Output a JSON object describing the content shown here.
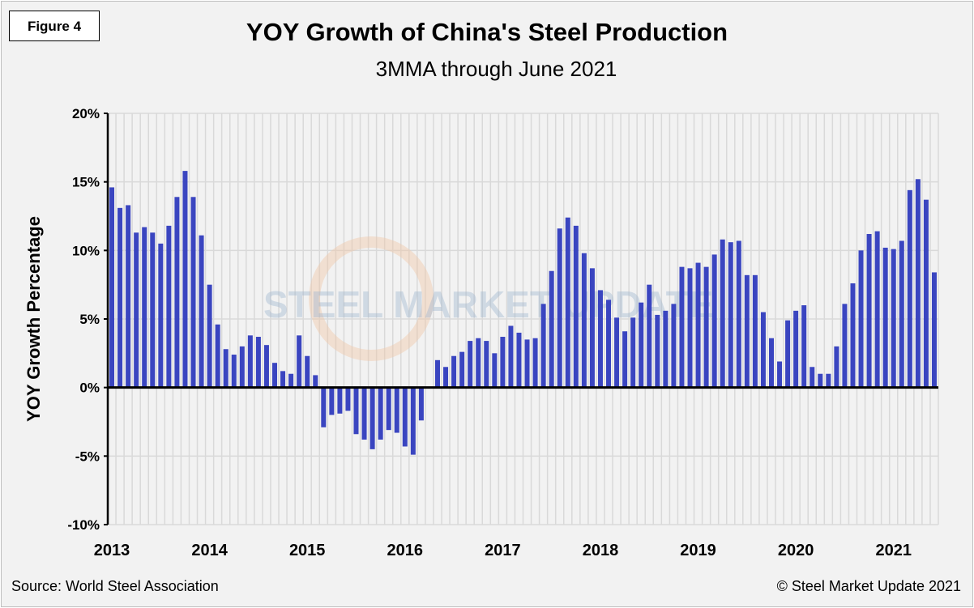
{
  "figure_label": "Figure 4",
  "source": "Source: World Steel Association",
  "copyright": "© Steel Market Update 2021",
  "watermark": "STEEL MARKET UPDATE part of the CRU Group",
  "chart_data": {
    "type": "bar",
    "title": "YOY Growth of China's Steel Production",
    "subtitle": "3MMA through June 2021",
    "xlabel": "",
    "ylabel": "YOY Growth Percentage",
    "ylim": [
      -10,
      20
    ],
    "yticks": [
      "-10%",
      "-5%",
      "0%",
      "5%",
      "10%",
      "15%",
      "20%"
    ],
    "xticks": [
      "2013",
      "2014",
      "2015",
      "2016",
      "2017",
      "2018",
      "2019",
      "2020",
      "2021"
    ],
    "x_range": [
      "Jan 2013",
      "Jun 2021"
    ],
    "frequency": "monthly",
    "grid": true,
    "bar_color": "#3a45c0",
    "values": [
      14.6,
      13.1,
      13.3,
      11.3,
      11.7,
      11.3,
      10.5,
      11.8,
      13.9,
      15.8,
      13.9,
      11.1,
      7.5,
      4.6,
      2.8,
      2.4,
      3.0,
      3.8,
      3.7,
      3.1,
      1.8,
      1.2,
      1.0,
      3.8,
      2.3,
      0.9,
      -2.9,
      -2.0,
      -1.9,
      -1.7,
      -3.4,
      -3.8,
      -4.5,
      -3.8,
      -3.1,
      -3.3,
      -4.3,
      -4.9,
      -2.4,
      0.0,
      2.0,
      1.5,
      2.3,
      2.6,
      3.4,
      3.6,
      3.4,
      2.5,
      3.7,
      4.5,
      4.0,
      3.5,
      3.6,
      6.1,
      8.5,
      11.6,
      12.4,
      11.8,
      9.8,
      8.7,
      7.1,
      6.4,
      5.1,
      4.1,
      5.1,
      6.2,
      7.5,
      5.3,
      5.6,
      6.1,
      8.8,
      8.7,
      9.1,
      8.8,
      9.7,
      10.8,
      10.6,
      10.7,
      8.2,
      8.2,
      5.5,
      3.6,
      1.9,
      4.9,
      5.6,
      6.0,
      1.5,
      1.0,
      1.0,
      3.0,
      6.1,
      7.6,
      10.0,
      11.2,
      11.4,
      10.2,
      10.1,
      10.7,
      14.4,
      15.2,
      13.7,
      8.4
    ]
  }
}
